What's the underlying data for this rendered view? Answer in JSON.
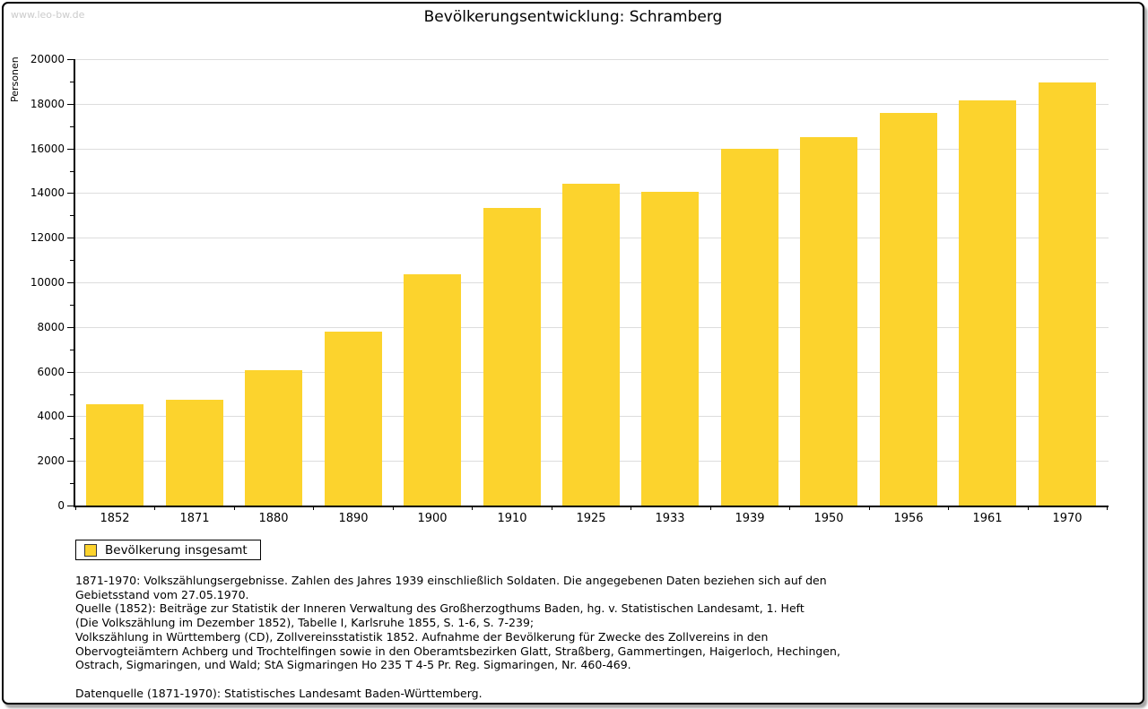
{
  "watermark": "www.leo-bw.de",
  "title": "Bevölkerungsentwicklung: Schramberg",
  "legend": {
    "label": "Bevölkerung insgesamt"
  },
  "colors": {
    "bar": "#FCD32D",
    "grid": "#DDDDDD",
    "axis": "#000000",
    "watermark": "#CBCBCB"
  },
  "chart_data": {
    "type": "bar",
    "title": "Bevölkerungsentwicklung: Schramberg",
    "xlabel": "",
    "ylabel": "Personen",
    "ylim": [
      0,
      20000
    ],
    "ytick_step": 2000,
    "minor_tick_step": 1000,
    "grid": true,
    "legend_position": "bottom-left",
    "categories": [
      "1852",
      "1871",
      "1880",
      "1890",
      "1900",
      "1910",
      "1925",
      "1933",
      "1939",
      "1950",
      "1956",
      "1961",
      "1970"
    ],
    "series": [
      {
        "name": "Bevölkerung insgesamt",
        "values": [
          4550,
          4720,
          6080,
          7780,
          10350,
          13350,
          14400,
          14060,
          16000,
          16490,
          17580,
          18160,
          18960
        ]
      }
    ]
  },
  "footnotes": {
    "lines": [
      "1871-1970: Volkszählungsergebnisse. Zahlen des Jahres 1939 einschließlich Soldaten. Die angegebenen Daten beziehen sich auf den",
      "Gebietsstand vom 27.05.1970.",
      "Quelle (1852): Beiträge zur Statistik der Inneren Verwaltung des Großherzogthums Baden, hg. v. Statistischen Landesamt, 1. Heft",
      "(Die Volkszählung im Dezember 1852), Tabelle I, Karlsruhe 1855, S. 1-6, S. 7-239;",
      "Volkszählung in Württemberg (CD), Zollvereinsstatistik 1852. Aufnahme der Bevölkerung für Zwecke des Zollvereins in den",
      "Obervogteiämtern Achberg und Trochtelfingen sowie in den Oberamtsbezirken Glatt, Straßberg, Gammertingen, Haigerloch, Hechingen,",
      "Ostrach, Sigmaringen, und Wald; StA Sigmaringen Ho 235 T 4-5 Pr. Reg. Sigmaringen, Nr. 460-469.",
      "",
      "Datenquelle (1871-1970): Statistisches Landesamt Baden-Württemberg."
    ]
  }
}
